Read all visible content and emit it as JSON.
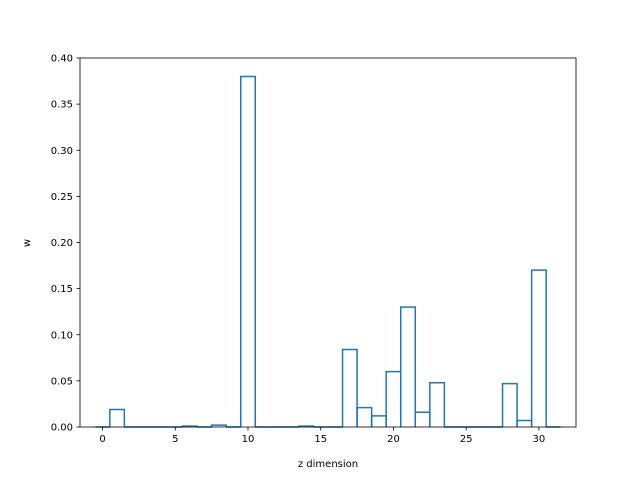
{
  "chart_data": {
    "type": "bar",
    "style": "step-histogram",
    "title": "",
    "xlabel": "z dimension",
    "ylabel": "w",
    "xlim": [
      -1.55,
      32.55
    ],
    "ylim": [
      0,
      0.4
    ],
    "grid": false,
    "legend": "none",
    "color": "#1f77b4",
    "x": [
      0,
      1,
      2,
      3,
      4,
      5,
      6,
      7,
      8,
      9,
      10,
      11,
      12,
      13,
      14,
      15,
      16,
      17,
      18,
      19,
      20,
      21,
      22,
      23,
      24,
      25,
      26,
      27,
      28,
      29,
      30,
      31
    ],
    "values": [
      0.0,
      0.019,
      0.0,
      0.0,
      0.0,
      0.0,
      0.001,
      0.0,
      0.002,
      0.0,
      0.38,
      0.0,
      0.0,
      0.0,
      0.001,
      0.0,
      0.0,
      0.084,
      0.021,
      0.012,
      0.06,
      0.13,
      0.016,
      0.048,
      0.0,
      0.0,
      0.0,
      0.0,
      0.047,
      0.007,
      0.17,
      0.0
    ],
    "xticks": [
      "0",
      "5",
      "10",
      "15",
      "20",
      "25",
      "30"
    ],
    "yticks": [
      "0.00",
      "0.05",
      "0.10",
      "0.15",
      "0.20",
      "0.25",
      "0.30",
      "0.35",
      "0.40"
    ]
  }
}
